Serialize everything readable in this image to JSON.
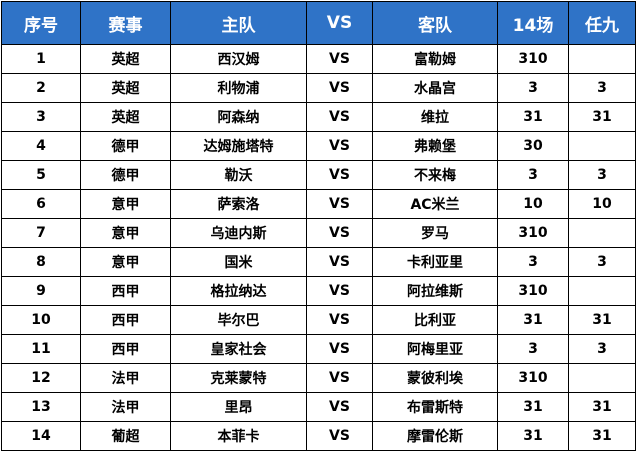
{
  "header": {
    "index": "序号",
    "league": "赛事",
    "home": "主队",
    "vs": "VS",
    "away": "客队",
    "pick14": "14场",
    "pick9": "任九"
  },
  "rows": [
    {
      "index": "1",
      "league": "英超",
      "home": "西汉姆",
      "vs": "VS",
      "away": "富勒姆",
      "pick14": "310",
      "pick9": ""
    },
    {
      "index": "2",
      "league": "英超",
      "home": "利物浦",
      "vs": "VS",
      "away": "水晶宫",
      "pick14": "3",
      "pick9": "3"
    },
    {
      "index": "3",
      "league": "英超",
      "home": "阿森纳",
      "vs": "VS",
      "away": "维拉",
      "pick14": "31",
      "pick9": "31"
    },
    {
      "index": "4",
      "league": "德甲",
      "home": "达姆施塔特",
      "vs": "VS",
      "away": "弗赖堡",
      "pick14": "30",
      "pick9": ""
    },
    {
      "index": "5",
      "league": "德甲",
      "home": "勒沃",
      "vs": "VS",
      "away": "不来梅",
      "pick14": "3",
      "pick9": "3"
    },
    {
      "index": "6",
      "league": "意甲",
      "home": "萨索洛",
      "vs": "VS",
      "away": "AC米兰",
      "pick14": "10",
      "pick9": "10"
    },
    {
      "index": "7",
      "league": "意甲",
      "home": "乌迪内斯",
      "vs": "VS",
      "away": "罗马",
      "pick14": "310",
      "pick9": ""
    },
    {
      "index": "8",
      "league": "意甲",
      "home": "国米",
      "vs": "VS",
      "away": "卡利亚里",
      "pick14": "3",
      "pick9": "3"
    },
    {
      "index": "9",
      "league": "西甲",
      "home": "格拉纳达",
      "vs": "VS",
      "away": "阿拉维斯",
      "pick14": "310",
      "pick9": ""
    },
    {
      "index": "10",
      "league": "西甲",
      "home": "毕尔巴",
      "vs": "VS",
      "away": "比利亚",
      "pick14": "31",
      "pick9": "31"
    },
    {
      "index": "11",
      "league": "西甲",
      "home": "皇家社会",
      "vs": "VS",
      "away": "阿梅里亚",
      "pick14": "3",
      "pick9": "3"
    },
    {
      "index": "12",
      "league": "法甲",
      "home": "克莱蒙特",
      "vs": "VS",
      "away": "蒙彼利埃",
      "pick14": "310",
      "pick9": ""
    },
    {
      "index": "13",
      "league": "法甲",
      "home": "里昂",
      "vs": "VS",
      "away": "布雷斯特",
      "pick14": "31",
      "pick9": "31"
    },
    {
      "index": "14",
      "league": "葡超",
      "home": "本菲卡",
      "vs": "VS",
      "away": "摩雷伦斯",
      "pick14": "31",
      "pick9": "31"
    }
  ],
  "colors": {
    "header_bg": "#2f73c7",
    "header_text": "#ffffff",
    "border": "#000000",
    "cell_text": "#000000"
  }
}
